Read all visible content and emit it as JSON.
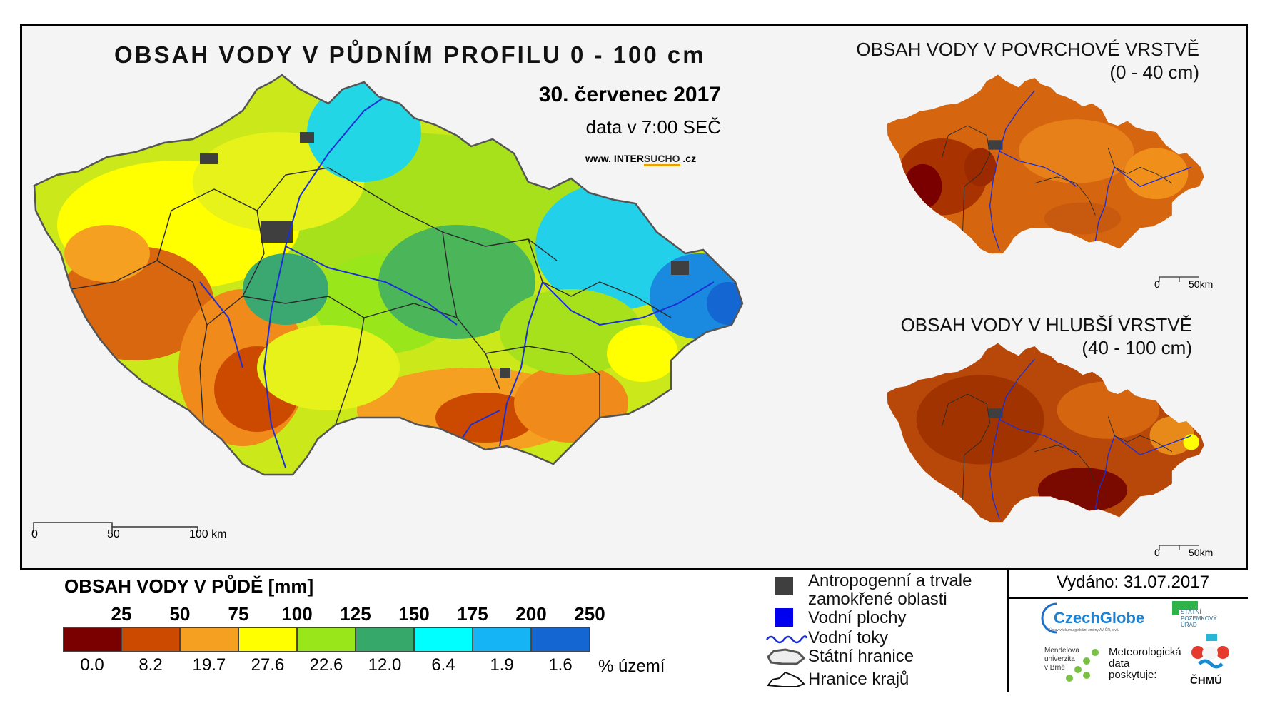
{
  "main_map": {
    "title": "OBSAH VODY V PŮDNÍM PROFILU 0 - 100 cm",
    "date": "30. červenec 2017",
    "time": "data v 7:00 SEČ",
    "website": {
      "prefix": "www. INTER",
      "brand": "SUCHO",
      "suffix": " .cz"
    },
    "scalebar": {
      "tick0": "0",
      "tick1": "50",
      "tick2": "100 km"
    }
  },
  "inset_surface": {
    "title": "OBSAH VODY V POVRCHOVÉ VRSTVĚ",
    "subtitle": "(0 - 40 cm)",
    "scalebar": {
      "tick0": "0",
      "tick1": "50km"
    }
  },
  "inset_deep": {
    "title": "OBSAH VODY V HLUBŠÍ VRSTVĚ",
    "subtitle": "(40 - 100 cm)",
    "scalebar": {
      "tick0": "0",
      "tick1": "50km"
    }
  },
  "legend": {
    "title": "OBSAH VODY V PŮDĚ [mm]",
    "unit_label": "% území",
    "classes": [
      {
        "upper": "25",
        "color": "#7a0000",
        "share": "0.0"
      },
      {
        "upper": "50",
        "color": "#cc4a00",
        "share": "8.2"
      },
      {
        "upper": "75",
        "color": "#f5a020",
        "share": "19.7"
      },
      {
        "upper": "100",
        "color": "#ffff00",
        "share": "27.6"
      },
      {
        "upper": "125",
        "color": "#99e61a",
        "share": "22.6"
      },
      {
        "upper": "150",
        "color": "#35a86a",
        "share": "12.0"
      },
      {
        "upper": "175",
        "color": "#00ffff",
        "share": "6.4"
      },
      {
        "upper": "200",
        "color": "#14b4f5",
        "share": "1.9"
      },
      {
        "upper": "250",
        "color": "#1466d2",
        "share": "1.6"
      }
    ]
  },
  "symbols": {
    "anthropogenic_line1": "Antropogenní a trvale",
    "anthropogenic_line2": "zamokřené oblasti",
    "water_areas": "Vodní plochy",
    "rivers": "Vodní toky",
    "state_border": "Státní hranice",
    "region_border": "Hranice krajů"
  },
  "issued": "Vydáno: 31.07.2017",
  "logos": {
    "czechglobe": "CzechGlobe",
    "czechglobe_sub": "Ústav výzkumu globální změny AV ČR, v.v.i.",
    "spu_line1": "STÁTNÍ",
    "spu_line2": "POZEMKOVÝ",
    "spu_line3": "ÚŘAD",
    "mendelu_line1": "Mendelova",
    "mendelu_line2": "univerzita",
    "mendelu_line3": "v Brně",
    "meteo_line1": "Meteorologická",
    "meteo_line2": "data",
    "meteo_line3": "poskytuje:",
    "chmu": "ČHMÚ"
  },
  "colors": {
    "river": "#1a2fd6",
    "anthropogenic": "#3f3f3f",
    "water_area": "#0000ee"
  }
}
